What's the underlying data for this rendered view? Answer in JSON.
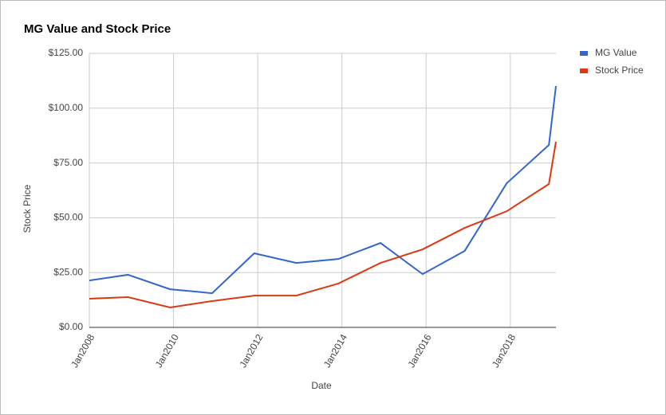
{
  "chart_data": {
    "type": "line",
    "title": "MG Value and Stock Price",
    "x_label": "Date",
    "y_label": "Stock Price",
    "x": [
      "2008-01",
      "2008-12",
      "2009-12",
      "2010-12",
      "2011-12",
      "2012-12",
      "2013-12",
      "2014-12",
      "2015-12",
      "2016-12",
      "2017-12",
      "2018-12",
      "2019-02"
    ],
    "series": [
      {
        "name": "MG Value",
        "color": "#3366cc",
        "values": [
          21.4,
          24,
          17.4,
          15.6,
          33.8,
          29.4,
          31.2,
          38.5,
          24.3,
          34.9,
          65.8,
          83.2,
          110.1
        ]
      },
      {
        "name": "Stock Price",
        "color": "#dc3912",
        "values": [
          13.1,
          13.8,
          9.1,
          12,
          14.5,
          14.5,
          20,
          29.4,
          35.6,
          45.4,
          53,
          65.4,
          84.7
        ]
      }
    ],
    "xlim": [
      "2008-01",
      "2019-02"
    ],
    "xticks": [
      {
        "value": "2008-01",
        "label": "Jan2008"
      },
      {
        "value": "2010-01",
        "label": "Jan2010"
      },
      {
        "value": "2012-01",
        "label": "Jan2012"
      },
      {
        "value": "2014-01",
        "label": "Jan2014"
      },
      {
        "value": "2016-01",
        "label": "Jan2016"
      },
      {
        "value": "2018-01",
        "label": "Jan2018"
      }
    ],
    "ylim": [
      0,
      125
    ],
    "yticks": [
      {
        "value": 0,
        "label": "$0.00"
      },
      {
        "value": 25,
        "label": "$25.00"
      },
      {
        "value": 50,
        "label": "$50.00"
      },
      {
        "value": 75,
        "label": "$75.00"
      },
      {
        "value": 100,
        "label": "$100.00"
      },
      {
        "value": 125,
        "label": "$125.00"
      }
    ],
    "grid": true,
    "legend": "right"
  }
}
